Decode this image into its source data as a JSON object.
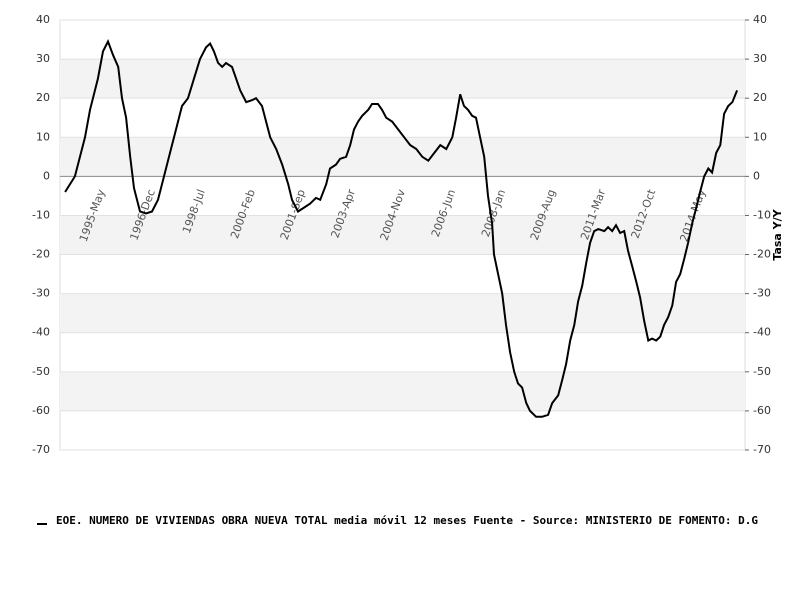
{
  "chart_data": {
    "type": "line",
    "x": [
      1994.16,
      1994.47,
      1994.79,
      1994.95,
      1995.2,
      1995.36,
      1995.52,
      1995.68,
      1995.84,
      1995.96,
      1996.09,
      1996.22,
      1996.34,
      1996.53,
      1996.72,
      1996.91,
      1997.1,
      1997.29,
      1997.48,
      1997.67,
      1997.86,
      1998.05,
      1998.24,
      1998.43,
      1998.62,
      1998.75,
      1998.87,
      1999.0,
      1999.13,
      1999.25,
      1999.44,
      1999.57,
      1999.7,
      1999.89,
      2000.08,
      2000.2,
      2000.39,
      2000.52,
      2000.65,
      2000.84,
      2001.03,
      2001.22,
      2001.34,
      2001.53,
      2001.72,
      2001.91,
      2002.1,
      2002.23,
      2002.42,
      2002.54,
      2002.73,
      2002.86,
      2003.05,
      2003.18,
      2003.3,
      2003.43,
      2003.56,
      2003.75,
      2003.87,
      2004.06,
      2004.19,
      2004.32,
      2004.51,
      2004.7,
      2004.89,
      2005.08,
      2005.27,
      2005.46,
      2005.65,
      2005.84,
      2006.03,
      2006.22,
      2006.41,
      2006.53,
      2006.66,
      2006.78,
      2006.91,
      2007.04,
      2007.16,
      2007.29,
      2007.42,
      2007.54,
      2007.67,
      2007.73,
      2007.86,
      2007.99,
      2008.11,
      2008.24,
      2008.37,
      2008.49,
      2008.62,
      2008.75,
      2008.87,
      2009.06,
      2009.25,
      2009.44,
      2009.57,
      2009.76,
      2009.89,
      2010.01,
      2010.14,
      2010.27,
      2010.39,
      2010.52,
      2010.65,
      2010.77,
      2010.9,
      2011.03,
      2011.22,
      2011.34,
      2011.47,
      2011.59,
      2011.72,
      2011.85,
      2011.97,
      2012.1,
      2012.23,
      2012.35,
      2012.48,
      2012.61,
      2012.73,
      2012.86,
      2012.99,
      2013.11,
      2013.24,
      2013.37,
      2013.49,
      2013.62,
      2013.75,
      2013.87,
      2014.0,
      2014.13,
      2014.25,
      2014.38,
      2014.51,
      2014.63,
      2014.76,
      2014.89,
      2015.01,
      2015.14,
      2015.27,
      2015.42
    ],
    "series": [
      {
        "name": "EOE. NUMERO DE VIVIENDAS OBRA NUEVA TOTAL media móvil 12 meses  Fuente - Source: MINISTERIO DE FOMENTO: D.G",
        "color": "#000000",
        "values": [
          -4,
          0,
          10,
          17,
          25,
          32,
          34.5,
          31,
          28,
          20,
          15,
          5,
          -3,
          -9,
          -9.5,
          -9,
          -6,
          0,
          6,
          12,
          18,
          20,
          25,
          30,
          33,
          34,
          32,
          29,
          28,
          29,
          28,
          25,
          22,
          19,
          19.5,
          20,
          18,
          14,
          10,
          7,
          3,
          -2,
          -6,
          -9,
          -8,
          -7,
          -5.5,
          -6,
          -2,
          2,
          3,
          4.5,
          5,
          8,
          12,
          14,
          15.5,
          17,
          18.5,
          18.5,
          17,
          15,
          14,
          12,
          10,
          8,
          7,
          5,
          4,
          6,
          8,
          7,
          10,
          15,
          21,
          18,
          17,
          15.5,
          15,
          10,
          5,
          -5,
          -12,
          -20,
          -25,
          -30,
          -38,
          -45,
          -50,
          -53,
          -54,
          -58,
          -60,
          -61.5,
          -61.5,
          -61,
          -58,
          -56,
          -52,
          -48,
          -42,
          -38,
          -32,
          -28,
          -22,
          -17,
          -14,
          -13.5,
          -14,
          -13,
          -14,
          -12.5,
          -14.5,
          -14,
          -19,
          -23,
          -27,
          -31,
          -37,
          -42,
          -41.5,
          -42,
          -41,
          -38,
          -36,
          -33,
          -27,
          -25,
          -21,
          -17,
          -12,
          -8,
          -4,
          0,
          2,
          1,
          6,
          8,
          16,
          18,
          19,
          22
        ]
      }
    ],
    "xlim": [
      1994,
      2015.67
    ],
    "xticks": [
      {
        "value": 1995.333,
        "label": "1995-May"
      },
      {
        "value": 1996.917,
        "label": "1996-Dec"
      },
      {
        "value": 1998.5,
        "label": "1998-Jul"
      },
      {
        "value": 2000.083,
        "label": "2000-Feb"
      },
      {
        "value": 2001.667,
        "label": "2001-Sep"
      },
      {
        "value": 2003.25,
        "label": "2003-Apr"
      },
      {
        "value": 2004.833,
        "label": "2004-Nov"
      },
      {
        "value": 2006.417,
        "label": "2006-Jun"
      },
      {
        "value": 2008.0,
        "label": "2008-Jan"
      },
      {
        "value": 2009.583,
        "label": "2009-Aug"
      },
      {
        "value": 2011.167,
        "label": "2011-Mar"
      },
      {
        "value": 2012.75,
        "label": "2012-Oct"
      },
      {
        "value": 2014.333,
        "label": "2014-May"
      }
    ],
    "ylim": [
      -70,
      40
    ],
    "yticks": [
      -70,
      -60,
      -50,
      -40,
      -30,
      -20,
      -10,
      0,
      10,
      20,
      30,
      40
    ],
    "y2lim": [
      -70,
      40
    ],
    "y2ticks": [
      -70,
      -60,
      -50,
      -40,
      -30,
      -20,
      -10,
      0,
      10,
      20,
      30,
      40
    ],
    "y2label": "Tasa Y/Y",
    "grid": true
  }
}
